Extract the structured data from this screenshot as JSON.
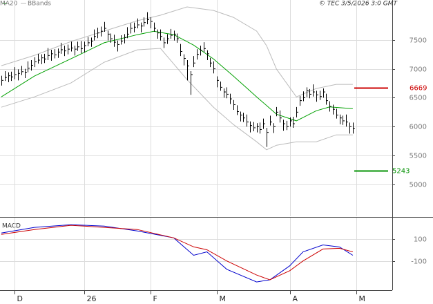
{
  "chart_data": [
    {
      "type": "ohlc",
      "annotation": "© TEC 3/5/2026 3:0 GMT",
      "color": "#000000",
      "xlim": [
        -0.4,
        117.9
      ],
      "ylim": [
        4450,
        8190
      ],
      "yticks": [
        5000,
        5500,
        6000,
        6500,
        7000,
        7500
      ],
      "grid": true,
      "close": [
        6800,
        6850,
        6880,
        6860,
        6900,
        6920,
        6950,
        6940,
        7010,
        7060,
        7120,
        7150,
        7190,
        7170,
        7230,
        7260,
        7240,
        7290,
        7330,
        7310,
        7340,
        7360,
        7340,
        7380,
        7350,
        7400,
        7450,
        7480,
        7560,
        7620,
        7650,
        7700,
        7600,
        7520,
        7460,
        7420,
        7480,
        7540,
        7600,
        7700,
        7720,
        7760,
        7740,
        7800,
        7850,
        7820,
        7700,
        7620,
        7560,
        7450,
        7520,
        7580,
        7600,
        7520,
        7300,
        7180,
        7050,
        6900,
        7100,
        7250,
        7320,
        7350,
        7260,
        7100,
        7000,
        6800,
        6680,
        6600,
        6560,
        6480,
        6380,
        6260,
        6200,
        6150,
        6080,
        6020,
        5980,
        6000,
        5950,
        6050,
        5900,
        6080,
        6000,
        6250,
        6150,
        6050,
        6000,
        6100,
        6050,
        6250,
        6450,
        6500,
        6620,
        6560,
        6600,
        6550,
        6520,
        6600,
        6450,
        6350,
        6300,
        6200,
        6150,
        6100,
        6080,
        6000,
        5970
      ],
      "high": [
        6880,
        6960,
        6940,
        6950,
        7030,
        6990,
        7050,
        7000,
        7130,
        7150,
        7200,
        7260,
        7250,
        7260,
        7360,
        7330,
        7340,
        7350,
        7450,
        7400,
        7420,
        7470,
        7400,
        7470,
        7480,
        7470,
        7550,
        7540,
        7680,
        7710,
        7730,
        7810,
        7660,
        7610,
        7590,
        7490,
        7580,
        7600,
        7720,
        7790,
        7800,
        7870,
        7800,
        7890,
        7980,
        7890,
        7800,
        7680,
        7680,
        7540,
        7600,
        7690,
        7660,
        7610,
        7430,
        7250,
        7150,
        6960,
        7220,
        7340,
        7400,
        7460,
        7320,
        7190,
        7130,
        6870,
        6780,
        6660,
        6680,
        6570,
        6460,
        6370,
        6260,
        6240,
        6210,
        6090,
        6080,
        6060,
        6070,
        6140,
        5980,
        6190,
        6060,
        6340,
        6280,
        6120,
        6100,
        6160,
        6170,
        6340,
        6530,
        6610,
        6680,
        6650,
        6730,
        6620,
        6620,
        6660,
        6570,
        6440,
        6380,
        6310,
        6210,
        6190,
        6210,
        6070,
        6070
      ],
      "low": [
        6710,
        6790,
        6770,
        6790,
        6820,
        6800,
        6890,
        6840,
        6940,
        6970,
        7030,
        7090,
        7080,
        7100,
        7150,
        7140,
        7180,
        7190,
        7260,
        7220,
        7250,
        7300,
        7230,
        7310,
        7270,
        7280,
        7390,
        7380,
        7490,
        7530,
        7560,
        7640,
        7490,
        7450,
        7380,
        7300,
        7420,
        7440,
        7530,
        7610,
        7630,
        7700,
        7630,
        7730,
        7770,
        7700,
        7640,
        7520,
        7490,
        7360,
        7430,
        7520,
        7490,
        7450,
        7220,
        7060,
        6800,
        6550,
        7030,
        7160,
        7230,
        7290,
        7150,
        7030,
        6920,
        6680,
        6620,
        6500,
        6490,
        6390,
        6290,
        6200,
        6090,
        6080,
        6000,
        5900,
        5920,
        5900,
        5880,
        5960,
        5650,
        6020,
        5890,
        6180,
        6070,
        5930,
        5940,
        6000,
        5980,
        6160,
        6360,
        6440,
        6510,
        6490,
        6520,
        6430,
        6460,
        6500,
        6380,
        6260,
        6210,
        6140,
        6040,
        6030,
        6000,
        5880,
        5880
      ],
      "series": [
        {
          "name": "MA20",
          "color": "#00a000",
          "x": [
            0,
            10,
            21,
            31,
            41,
            46,
            52,
            58,
            64,
            70,
            77,
            83,
            89,
            95,
            99,
            106
          ],
          "values": [
            6515,
            6874,
            7173,
            7450,
            7590,
            7650,
            7590,
            7410,
            7170,
            6875,
            6515,
            6215,
            6100,
            6275,
            6340,
            6310
          ]
        },
        {
          "name": "BBands",
          "color": "#bbbbbb",
          "x": [
            0,
            10,
            21,
            31,
            41,
            48,
            56,
            64,
            70,
            77,
            80,
            83,
            89,
            95,
            101,
            106
          ],
          "values": [
            7054,
            7233,
            7472,
            7652,
            7831,
            7927,
            8070,
            8010,
            7890,
            7652,
            7400,
            6994,
            6515,
            6659,
            6731,
            6731
          ],
          "lower": [
            6336,
            6515,
            6755,
            7113,
            7329,
            7353,
            6814,
            6336,
            6037,
            5738,
            5600,
            5678,
            5738,
            5738,
            5858,
            5858
          ]
        }
      ],
      "levels": [
        {
          "value": 6669,
          "color": "#cc0000"
        },
        {
          "value": 5243,
          "color": "#009000"
        }
      ]
    },
    {
      "type": "line",
      "title": "MACD",
      "xlim": [
        -0.4,
        117.9
      ],
      "ylim": [
        -370,
        300
      ],
      "yticks": [
        100,
        -100
      ],
      "xticks": [
        {
          "value": 4,
          "label": "D"
        },
        {
          "value": 25,
          "label": "26"
        },
        {
          "value": 45,
          "label": "F"
        },
        {
          "value": 65,
          "label": "M"
        },
        {
          "value": 87,
          "label": "A"
        },
        {
          "value": 107,
          "label": "M"
        }
      ],
      "series": [
        {
          "color": "#0000cc",
          "x": [
            0,
            10,
            21,
            31,
            41,
            52,
            58,
            62,
            68,
            77,
            81,
            87,
            91,
            97,
            102,
            106
          ],
          "values": [
            158,
            210,
            235,
            222,
            177,
            113,
            -48,
            -16,
            -177,
            -294,
            -274,
            -145,
            -16,
            48,
            29,
            -48
          ]
        },
        {
          "color": "#cc0000",
          "x": [
            0,
            10,
            21,
            31,
            41,
            52,
            58,
            62,
            68,
            77,
            81,
            87,
            91,
            97,
            102,
            106
          ],
          "values": [
            145,
            190,
            229,
            210,
            190,
            113,
            30,
            3,
            -100,
            -230,
            -274,
            -190,
            -100,
            10,
            17,
            -16
          ]
        }
      ]
    }
  ]
}
